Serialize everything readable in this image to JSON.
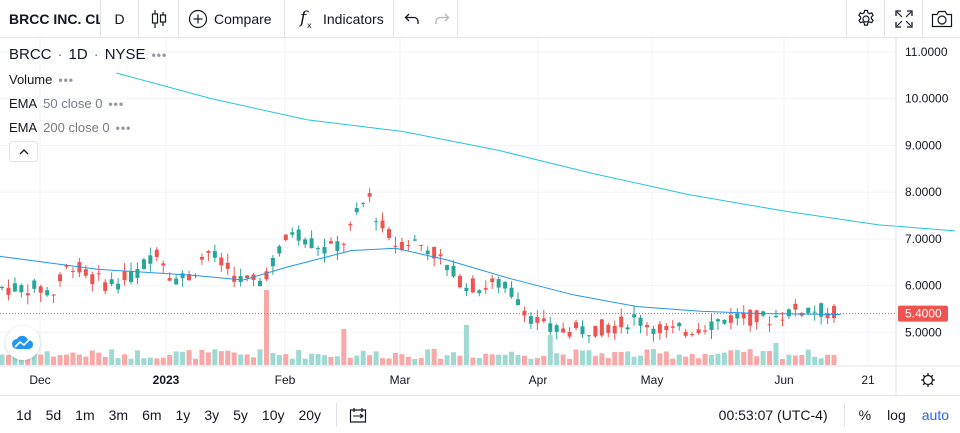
{
  "toolbar": {
    "symbol": "BRCC INC. CL",
    "interval": "D",
    "compare_label": "Compare",
    "indicators_label": "Indicators",
    "icons": [
      "candles-icon",
      "plus-circle-icon",
      "fx-icon",
      "undo-icon",
      "redo-icon",
      "gear-icon",
      "fullscreen-icon",
      "camera-icon"
    ]
  },
  "legend": {
    "symbol": "BRCC",
    "interval": "1D",
    "exchange": "NYSE",
    "volume_label": "Volume",
    "ema50_name": "EMA",
    "ema50_params": "50 close 0",
    "ema200_name": "EMA",
    "ema200_params": "200 close 0"
  },
  "colors": {
    "up": "#26a69a",
    "down": "#ef5350",
    "up_volume": "#9ed9d3",
    "down_volume": "#f7a9a7",
    "ema50": "#2196f3",
    "ema200": "#26c6da",
    "price_line": "#ef5350",
    "accent": "#2962ff"
  },
  "chart_data": {
    "type": "candlestick",
    "y_axis": {
      "min": 4.3,
      "max": 11.3,
      "ticks": [
        "11.0000",
        "10.0000",
        "9.0000",
        "8.0000",
        "7.0000",
        "6.0000",
        "5.0000"
      ]
    },
    "x_axis_labels": [
      "Dec",
      "2023",
      "Feb",
      "Mar",
      "Apr",
      "May",
      "Jun",
      "21"
    ],
    "current_price": "5.4000",
    "ema200_points": [
      [
        0,
        10.55
      ],
      [
        15,
        10.0
      ],
      [
        30,
        9.55
      ],
      [
        45,
        9.3
      ],
      [
        60,
        8.9
      ],
      [
        75,
        8.4
      ],
      [
        90,
        7.95
      ],
      [
        105,
        7.6
      ],
      [
        120,
        7.3
      ],
      [
        132,
        7.17
      ]
    ],
    "ema50_points": [
      [
        -23,
        7.25
      ],
      [
        -10,
        6.85
      ],
      [
        0,
        6.62
      ],
      [
        15,
        6.35
      ],
      [
        30,
        6.22
      ],
      [
        38,
        6.12
      ],
      [
        45,
        6.4
      ],
      [
        55,
        6.75
      ],
      [
        62,
        6.8
      ],
      [
        70,
        6.55
      ],
      [
        80,
        6.15
      ],
      [
        90,
        5.8
      ],
      [
        100,
        5.55
      ],
      [
        110,
        5.45
      ],
      [
        120,
        5.4
      ],
      [
        132,
        5.38
      ]
    ]
  },
  "status": {
    "clock": "00:53:07 (UTC-4)",
    "percent_label": "%",
    "log_label": "log",
    "auto_label": "auto"
  },
  "ranges": [
    "1d",
    "5d",
    "1m",
    "3m",
    "6m",
    "1y",
    "3y",
    "5y",
    "10y",
    "20y"
  ]
}
